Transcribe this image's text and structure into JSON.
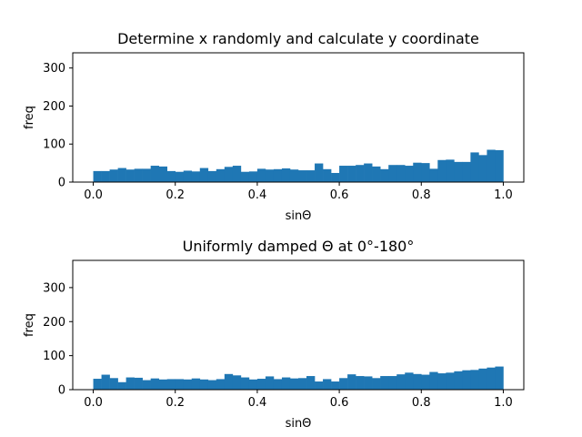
{
  "chart_data": [
    {
      "type": "bar",
      "title": "Determine x randomly and calculate y coordinate",
      "xlabel": "sinΘ",
      "ylabel": "freq",
      "xlim": [
        -0.05,
        1.05
      ],
      "ylim": [
        0,
        340
      ],
      "xticks": [
        0.0,
        0.2,
        0.4,
        0.6,
        0.8,
        1.0
      ],
      "xtick_labels": [
        "0.0",
        "0.2",
        "0.4",
        "0.6",
        "0.8",
        "1.0"
      ],
      "yticks": [
        0,
        100,
        200,
        300
      ],
      "ytick_labels": [
        "0",
        "100",
        "200",
        "300"
      ],
      "bin_range": [
        0,
        1
      ],
      "bins": 50,
      "color": "#1f77b4",
      "values": [
        29,
        29,
        33,
        37,
        33,
        35,
        35,
        43,
        41,
        29,
        27,
        30,
        28,
        37,
        29,
        34,
        40,
        43,
        27,
        28,
        35,
        33,
        34,
        36,
        33,
        31,
        31,
        49,
        34,
        24,
        43,
        43,
        45,
        49,
        41,
        34,
        45,
        45,
        43,
        51,
        50,
        35,
        58,
        59,
        53,
        53,
        78,
        71,
        85,
        84
      ]
    },
    {
      "type": "bar",
      "title": "Uniformly damped Θ at 0°-180°",
      "xlabel": "sinΘ",
      "ylabel": "freq",
      "xlim": [
        -0.05,
        1.05
      ],
      "ylim": [
        0,
        380
      ],
      "xticks": [
        0.0,
        0.2,
        0.4,
        0.6,
        0.8,
        1.0
      ],
      "xtick_labels": [
        "0.0",
        "0.2",
        "0.4",
        "0.6",
        "0.8",
        "1.0"
      ],
      "yticks": [
        0,
        100,
        200,
        300
      ],
      "ytick_labels": [
        "0",
        "100",
        "200",
        "300"
      ],
      "bin_range": [
        0,
        1
      ],
      "bins": 50,
      "color": "#1f77b4",
      "values": [
        32,
        44,
        34,
        22,
        36,
        35,
        28,
        33,
        30,
        31,
        31,
        30,
        33,
        30,
        28,
        31,
        46,
        42,
        36,
        30,
        32,
        39,
        31,
        36,
        33,
        34,
        40,
        24,
        31,
        24,
        34,
        45,
        40,
        39,
        34,
        40,
        40,
        45,
        50,
        46,
        44,
        52,
        48,
        50,
        54,
        57,
        58,
        62,
        65,
        68
      ]
    }
  ]
}
